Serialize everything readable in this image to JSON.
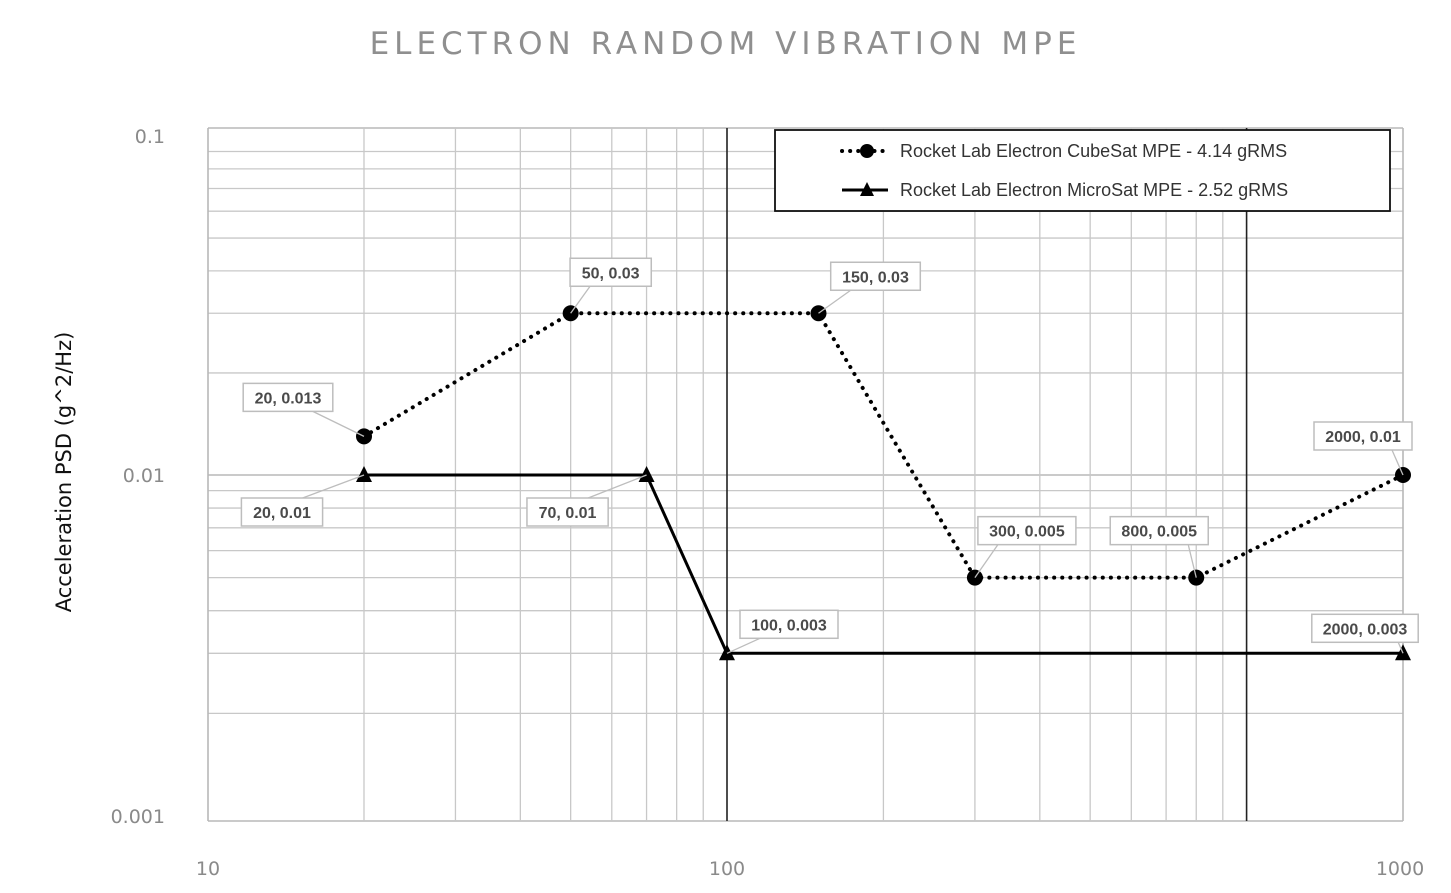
{
  "chart_data": {
    "type": "line",
    "title": "ELECTRON RANDOM VIBRATION MPE",
    "ylabel": "Acceleration PSD (g^2/Hz)",
    "xlabel": "",
    "x_scale": "log",
    "y_scale": "log",
    "grid": true,
    "legend_position": "top-right",
    "x_tick_labels": [
      "10",
      "100",
      "1000"
    ],
    "y_tick_labels": [
      "0.1",
      "0.01",
      "0.001"
    ],
    "series": [
      {
        "name": "Rocket Lab Electron CubeSat MPE - 4.14 gRMS",
        "line_style": "dotted",
        "marker": "circle",
        "color": "#000000",
        "points": [
          {
            "x": 20,
            "y": 0.013,
            "label": "20, 0.013"
          },
          {
            "x": 50,
            "y": 0.03,
            "label": "50, 0.03"
          },
          {
            "x": 150,
            "y": 0.03,
            "label": "150, 0.03"
          },
          {
            "x": 300,
            "y": 0.005,
            "label": "300, 0.005"
          },
          {
            "x": 800,
            "y": 0.005,
            "label": "800, 0.005"
          },
          {
            "x": 2000,
            "y": 0.01,
            "label": "2000, 0.01"
          }
        ]
      },
      {
        "name": "Rocket Lab Electron MicroSat MPE - 2.52 gRMS",
        "line_style": "solid",
        "marker": "triangle",
        "color": "#000000",
        "points": [
          {
            "x": 20,
            "y": 0.01,
            "label": "20, 0.01"
          },
          {
            "x": 70,
            "y": 0.01,
            "label": "70, 0.01"
          },
          {
            "x": 100,
            "y": 0.003,
            "label": "100, 0.003"
          },
          {
            "x": 2000,
            "y": 0.003,
            "label": "2000, 0.003"
          }
        ]
      }
    ]
  }
}
